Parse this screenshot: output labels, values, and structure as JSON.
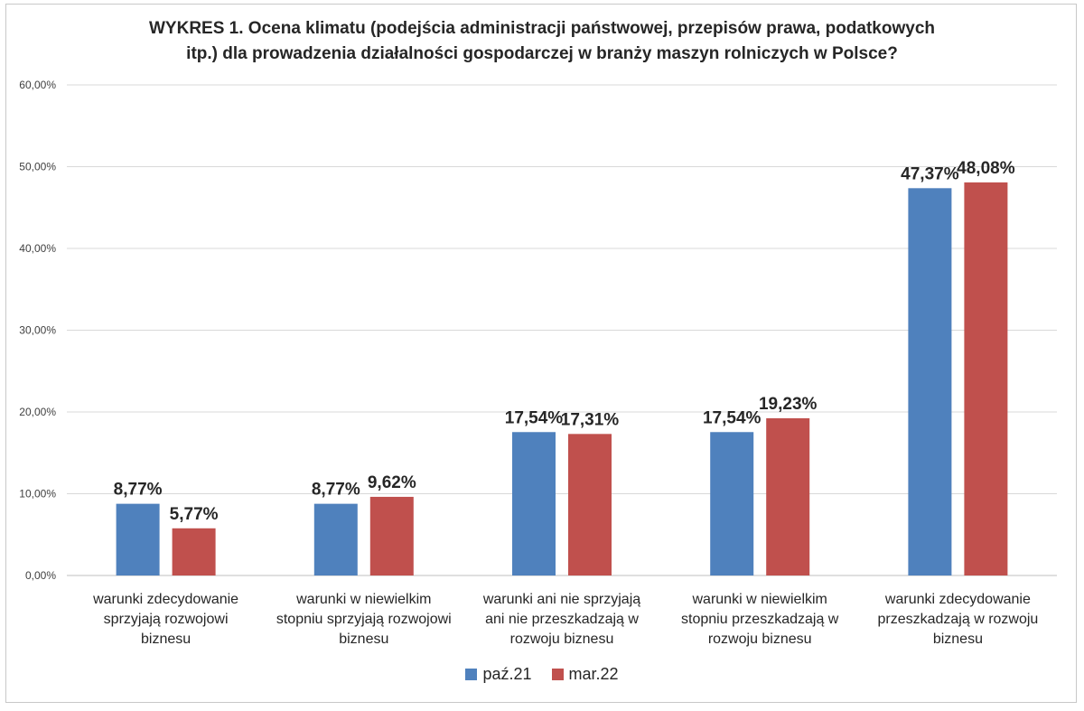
{
  "chart_data": {
    "type": "bar",
    "title_line1": "WYKRES 1. Ocena klimatu (podejścia administracji państwowej, przepisów prawa, podatkowych",
    "title_line2": "itp.) dla prowadzenia działalności gospodarczej w branży maszyn rolniczych w Polsce?",
    "categories": [
      [
        "warunki zdecydowanie",
        "sprzyjają rozwojowi",
        "biznesu"
      ],
      [
        "warunki w niewielkim",
        "stopniu sprzyjają rozwojowi",
        "biznesu"
      ],
      [
        "warunki ani nie sprzyjają",
        "ani nie przeszkadzają w",
        "rozwoju biznesu"
      ],
      [
        "warunki w niewielkim",
        "stopniu przeszkadzają w",
        "rozwoju biznesu"
      ],
      [
        "warunki zdecydowanie",
        "przeszkadzają w rozwoju",
        "biznesu"
      ]
    ],
    "series": [
      {
        "name": "paź.21",
        "color": "#4f81bd",
        "values": [
          8.77,
          8.77,
          17.54,
          17.54,
          47.37
        ],
        "labels": [
          "8,77%",
          "8,77%",
          "17,54%",
          "17,54%",
          "47,37%"
        ]
      },
      {
        "name": "mar.22",
        "color": "#c0504d",
        "values": [
          5.77,
          9.62,
          17.31,
          19.23,
          48.08
        ],
        "labels": [
          "5,77%",
          "9,62%",
          "17,31%",
          "19,23%",
          "48,08%"
        ]
      }
    ],
    "ylim": [
      0,
      60
    ],
    "yticks": [
      0,
      10,
      20,
      30,
      40,
      50,
      60
    ],
    "ytick_labels": [
      "0,00%",
      "10,00%",
      "20,00%",
      "30,00%",
      "40,00%",
      "50,00%",
      "60,00%"
    ],
    "grid": true,
    "legend_position": "bottom"
  }
}
